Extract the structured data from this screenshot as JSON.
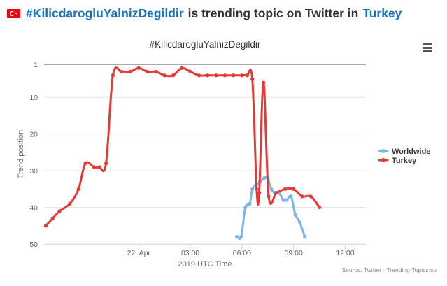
{
  "headline": {
    "hashtag": "#KilicdarogluYalnizDegildir",
    "middle_text": "is trending topic on Twitter in",
    "country": "Turkey",
    "flag_icon": "turkey-flag-icon"
  },
  "menu": {
    "icon": "hamburger-menu-icon"
  },
  "source": "Source: Twitter - Trending-Topics.co",
  "chart_data": {
    "type": "line",
    "title": "#KilicdarogluYalnizDegildir",
    "xlabel": "2019 UTC Time",
    "ylabel": "Trend position",
    "y_reversed": true,
    "ylim": [
      1,
      50
    ],
    "y_ticks": [
      1,
      10,
      20,
      30,
      40,
      50
    ],
    "x_unit": "hours relative to 22 Apr 00:00 UTC",
    "xlim": [
      -5.5,
      13.2
    ],
    "x_ticks": [
      {
        "x": 0,
        "label": "22. Apr"
      },
      {
        "x": 3,
        "label": "03:00"
      },
      {
        "x": 6,
        "label": "06:00"
      },
      {
        "x": 9,
        "label": "09:00"
      },
      {
        "x": 12,
        "label": "12:00"
      }
    ],
    "legend_position": "right",
    "grid": "horizontal",
    "series": [
      {
        "name": "Worldwide",
        "color": "#7cb5ec",
        "points": [
          [
            5.7,
            48
          ],
          [
            5.95,
            48
          ],
          [
            6.2,
            40
          ],
          [
            6.45,
            39
          ],
          [
            6.6,
            35
          ],
          [
            6.8,
            34
          ],
          [
            7.05,
            33
          ],
          [
            7.3,
            32
          ],
          [
            7.5,
            32
          ],
          [
            7.7,
            35
          ],
          [
            7.9,
            36
          ],
          [
            8.15,
            36
          ],
          [
            8.4,
            38
          ],
          [
            8.6,
            38
          ],
          [
            8.85,
            37
          ],
          [
            9.1,
            42
          ],
          [
            9.35,
            44
          ],
          [
            9.65,
            48
          ]
        ]
      },
      {
        "name": "Turkey",
        "color": "#e53935",
        "points": [
          [
            -5.4,
            45
          ],
          [
            -5.0,
            43
          ],
          [
            -4.6,
            41
          ],
          [
            -4.0,
            39
          ],
          [
            -3.5,
            35
          ],
          [
            -3.1,
            28
          ],
          [
            -2.6,
            29
          ],
          [
            -2.3,
            29
          ],
          [
            -1.9,
            28
          ],
          [
            -1.5,
            4
          ],
          [
            -1.0,
            3
          ],
          [
            -0.5,
            3
          ],
          [
            0.0,
            2
          ],
          [
            0.5,
            3
          ],
          [
            1.0,
            3
          ],
          [
            1.5,
            4
          ],
          [
            2.0,
            4
          ],
          [
            2.5,
            2
          ],
          [
            3.0,
            3
          ],
          [
            3.5,
            4
          ],
          [
            4.0,
            4
          ],
          [
            4.5,
            4
          ],
          [
            5.0,
            4
          ],
          [
            5.5,
            4
          ],
          [
            6.0,
            4
          ],
          [
            6.3,
            4
          ],
          [
            6.6,
            5
          ],
          [
            6.85,
            35
          ],
          [
            7.0,
            36
          ],
          [
            7.25,
            6
          ],
          [
            7.55,
            37
          ],
          [
            8.0,
            36
          ],
          [
            8.5,
            35
          ],
          [
            9.0,
            35
          ],
          [
            9.5,
            37
          ],
          [
            10.0,
            37
          ],
          [
            10.5,
            40
          ]
        ]
      }
    ]
  }
}
